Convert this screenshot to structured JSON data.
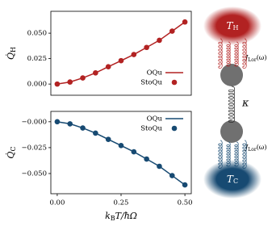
{
  "chart_data": [
    {
      "type": "line",
      "ylabel": [
        "Q̇",
        "H"
      ],
      "x": [
        0,
        0.05,
        0.1,
        0.15,
        0.2,
        0.25,
        0.3,
        0.35,
        0.4,
        0.45,
        0.5
      ],
      "series": [
        {
          "name": "OQu",
          "style": "line",
          "color": "#b22222",
          "values": [
            0,
            0.002,
            0.006,
            0.011,
            0.017,
            0.023,
            0.029,
            0.036,
            0.043,
            0.052,
            0.061
          ]
        },
        {
          "name": "StoQu",
          "style": "marker",
          "color": "#b22222",
          "values": [
            0,
            0.002,
            0.006,
            0.011,
            0.017,
            0.023,
            0.029,
            0.036,
            0.043,
            0.052,
            0.061
          ]
        }
      ],
      "xlim": [
        -0.025,
        0.525
      ],
      "ylim": [
        -0.011,
        0.0715
      ],
      "yticks": [
        {
          "value": 0,
          "label": "0.000"
        },
        0.025,
        {
          "value": 0.05,
          "label": "0.050"
        }
      ],
      "legend": "lower right"
    },
    {
      "type": "line",
      "ylabel": [
        "Q̇",
        "C"
      ],
      "x": [
        0,
        0.05,
        0.1,
        0.15,
        0.2,
        0.25,
        0.3,
        0.35,
        0.4,
        0.45,
        0.5
      ],
      "series": [
        {
          "name": "OQu",
          "style": "line",
          "color": "#174a72",
          "values": [
            0,
            -0.002,
            -0.006,
            -0.011,
            -0.017,
            -0.023,
            -0.029,
            -0.036,
            -0.043,
            -0.052,
            -0.061
          ]
        },
        {
          "name": "StoQu",
          "style": "marker",
          "color": "#174a72",
          "values": [
            0,
            -0.002,
            -0.006,
            -0.011,
            -0.017,
            -0.023,
            -0.029,
            -0.036,
            -0.043,
            -0.052,
            -0.061
          ]
        }
      ],
      "xlim": [
        -0.025,
        0.525
      ],
      "ylim": [
        -0.0695,
        0.01
      ],
      "yticks": [
        {
          "value": 0,
          "label": "−0.000"
        },
        {
          "value": -0.025,
          "label": "−0.025"
        },
        {
          "value": -0.05,
          "label": "−0.050"
        }
      ],
      "xticks": [
        {
          "value": 0,
          "label": "0.00"
        },
        {
          "value": 0.25,
          "label": "0.25"
        },
        {
          "value": 0.5,
          "label": "0.50"
        }
      ],
      "xlabel": [
        "k",
        "B",
        "T/ħΩ"
      ],
      "legend": "upper right"
    }
  ],
  "diagram": {
    "hot": [
      "T",
      "H"
    ],
    "cold": [
      "T",
      "C"
    ],
    "coupling_top": [
      "J",
      "Lor",
      "(ω)"
    ],
    "coupling_bottom": [
      "J",
      "Lor",
      "(ω)"
    ],
    "kappa": "κ"
  }
}
